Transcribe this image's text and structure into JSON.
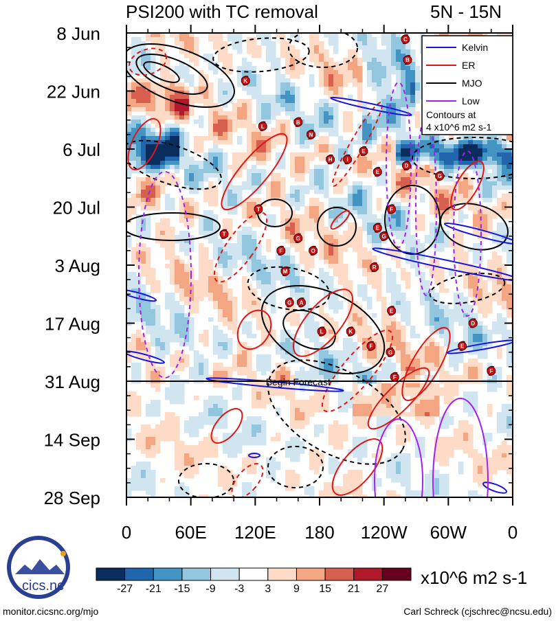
{
  "chart_data": {
    "type": "heatmap",
    "title": "PSI200 with TC removal",
    "region": "5N - 15N",
    "x_tick_labels": [
      "0",
      "60E",
      "120E",
      "180",
      "120W",
      "60W",
      "0"
    ],
    "y_tick_labels": [
      "8 Jun",
      "22 Jun",
      "6 Jul",
      "20 Jul",
      "3 Aug",
      "17 Aug",
      "31 Aug",
      "14 Sep",
      "28 Sep"
    ],
    "forecast_label": "Begin Forecast",
    "legend": {
      "entries": [
        {
          "name": "Kelvin",
          "color": "#1515e0"
        },
        {
          "name": "ER",
          "color": "#e01515"
        },
        {
          "name": "MJO",
          "color": "#000000"
        },
        {
          "name": "Low",
          "color": "#a020f0"
        }
      ],
      "note_line1": "Contours at",
      "note_line2": "4 x10^6 m2 s-1"
    },
    "colorbar": {
      "tick_labels": [
        "-27",
        "-21",
        "-15",
        "-9",
        "-3",
        "3",
        "9",
        "15",
        "21",
        "27"
      ],
      "colors": [
        "#0b2d5e",
        "#2166ac",
        "#4393c3",
        "#92c5de",
        "#d1e5f0",
        "#ffffff",
        "#fddbc7",
        "#f4a582",
        "#d6604d",
        "#b2182b",
        "#67001f"
      ],
      "units": "x10^6 m2 s-1"
    },
    "tc_markers": [
      {
        "letter": "C",
        "lon": 260,
        "day": 1.5
      },
      {
        "letter": "B",
        "lon": 262,
        "day": 6.5
      },
      {
        "letter": "K",
        "lon": 111,
        "day": 11.5
      },
      {
        "letter": "B",
        "lon": 160,
        "day": 21.5
      },
      {
        "letter": "L",
        "lon": 127,
        "day": 22.5
      },
      {
        "letter": "N",
        "lon": 172,
        "day": 24.5
      },
      {
        "letter": "E",
        "lon": 221,
        "day": 28.5
      },
      {
        "letter": "H",
        "lon": 190,
        "day": 30.5
      },
      {
        "letter": "I",
        "lon": 206,
        "day": 30.5
      },
      {
        "letter": "D",
        "lon": 261,
        "day": 32
      },
      {
        "letter": "E",
        "lon": 234,
        "day": 33.5
      },
      {
        "letter": "G",
        "lon": 292,
        "day": 34.5
      },
      {
        "letter": "T",
        "lon": 123,
        "day": 42.5
      },
      {
        "letter": "F",
        "lon": 247,
        "day": 42.5
      },
      {
        "letter": "E",
        "lon": 234,
        "day": 47
      },
      {
        "letter": "T",
        "lon": 91,
        "day": 48.5
      },
      {
        "letter": "G",
        "lon": 240,
        "day": 49
      },
      {
        "letter": "G",
        "lon": 160,
        "day": 49.5
      },
      {
        "letter": "F",
        "lon": 144,
        "day": 52.5
      },
      {
        "letter": "O",
        "lon": 174,
        "day": 52.5
      },
      {
        "letter": "R",
        "lon": 231,
        "day": 56.5
      },
      {
        "letter": "M",
        "lon": 148,
        "day": 57.5
      },
      {
        "letter": "G",
        "lon": 152,
        "day": 65
      },
      {
        "letter": "A",
        "lon": 163,
        "day": 65
      },
      {
        "letter": "E",
        "lon": 247,
        "day": 67
      },
      {
        "letter": "D",
        "lon": 323,
        "day": 70
      },
      {
        "letter": "L",
        "lon": 182,
        "day": 72
      },
      {
        "letter": "K",
        "lon": 209,
        "day": 72
      },
      {
        "letter": "F",
        "lon": 228,
        "day": 75.5
      },
      {
        "letter": "G",
        "lon": 246,
        "day": 77
      },
      {
        "letter": "E",
        "lon": 313,
        "day": 75.5
      },
      {
        "letter": "F",
        "lon": 250,
        "day": 83
      },
      {
        "letter": "F",
        "lon": 340,
        "day": 81.5
      }
    ]
  },
  "logo": {
    "text": "cics.nc"
  },
  "footer": {
    "left": "monitor.cicsnc.org/mjo",
    "right": "Carl Schreck (cjschrec@ncsu.edu)"
  }
}
